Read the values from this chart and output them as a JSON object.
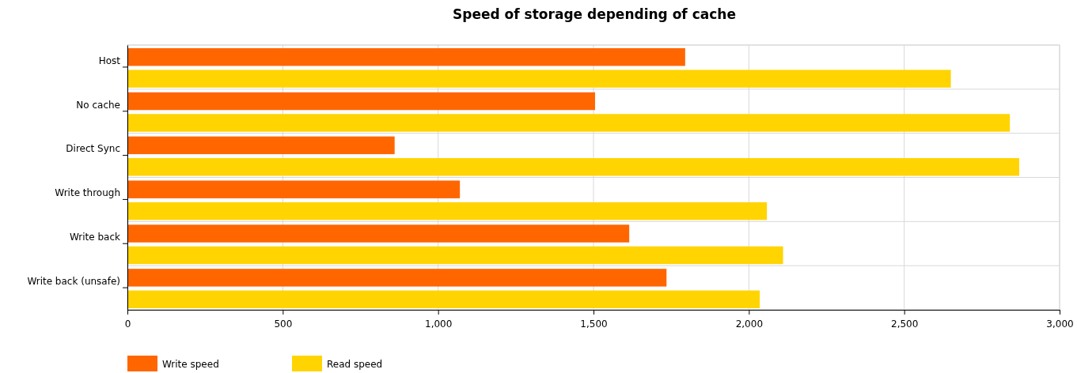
{
  "chart_data": {
    "type": "bar",
    "orientation": "horizontal",
    "title": "Speed of storage depending of cache",
    "categories": [
      "Host",
      "No cache",
      "Direct Sync",
      "Write through",
      "Write back",
      "Write back (unsafe)"
    ],
    "series": [
      {
        "name": "Write speed",
        "color": "#ff6600",
        "values": [
          1795,
          1505,
          860,
          1070,
          1615,
          1735
        ]
      },
      {
        "name": "Read speed",
        "color": "#ffd400",
        "values": [
          2650,
          2840,
          2870,
          2058,
          2110,
          2035
        ]
      }
    ],
    "xlim": [
      0,
      3000
    ],
    "xticks": [
      {
        "value": 0,
        "label": "0"
      },
      {
        "value": 500,
        "label": "500"
      },
      {
        "value": 1000,
        "label": "1,000"
      },
      {
        "value": 1500,
        "label": "1,500"
      },
      {
        "value": 2000,
        "label": "2,000"
      },
      {
        "value": 2500,
        "label": "2,500"
      },
      {
        "value": 3000,
        "label": "3,000"
      }
    ],
    "grid": true,
    "legend": "bottom left"
  }
}
